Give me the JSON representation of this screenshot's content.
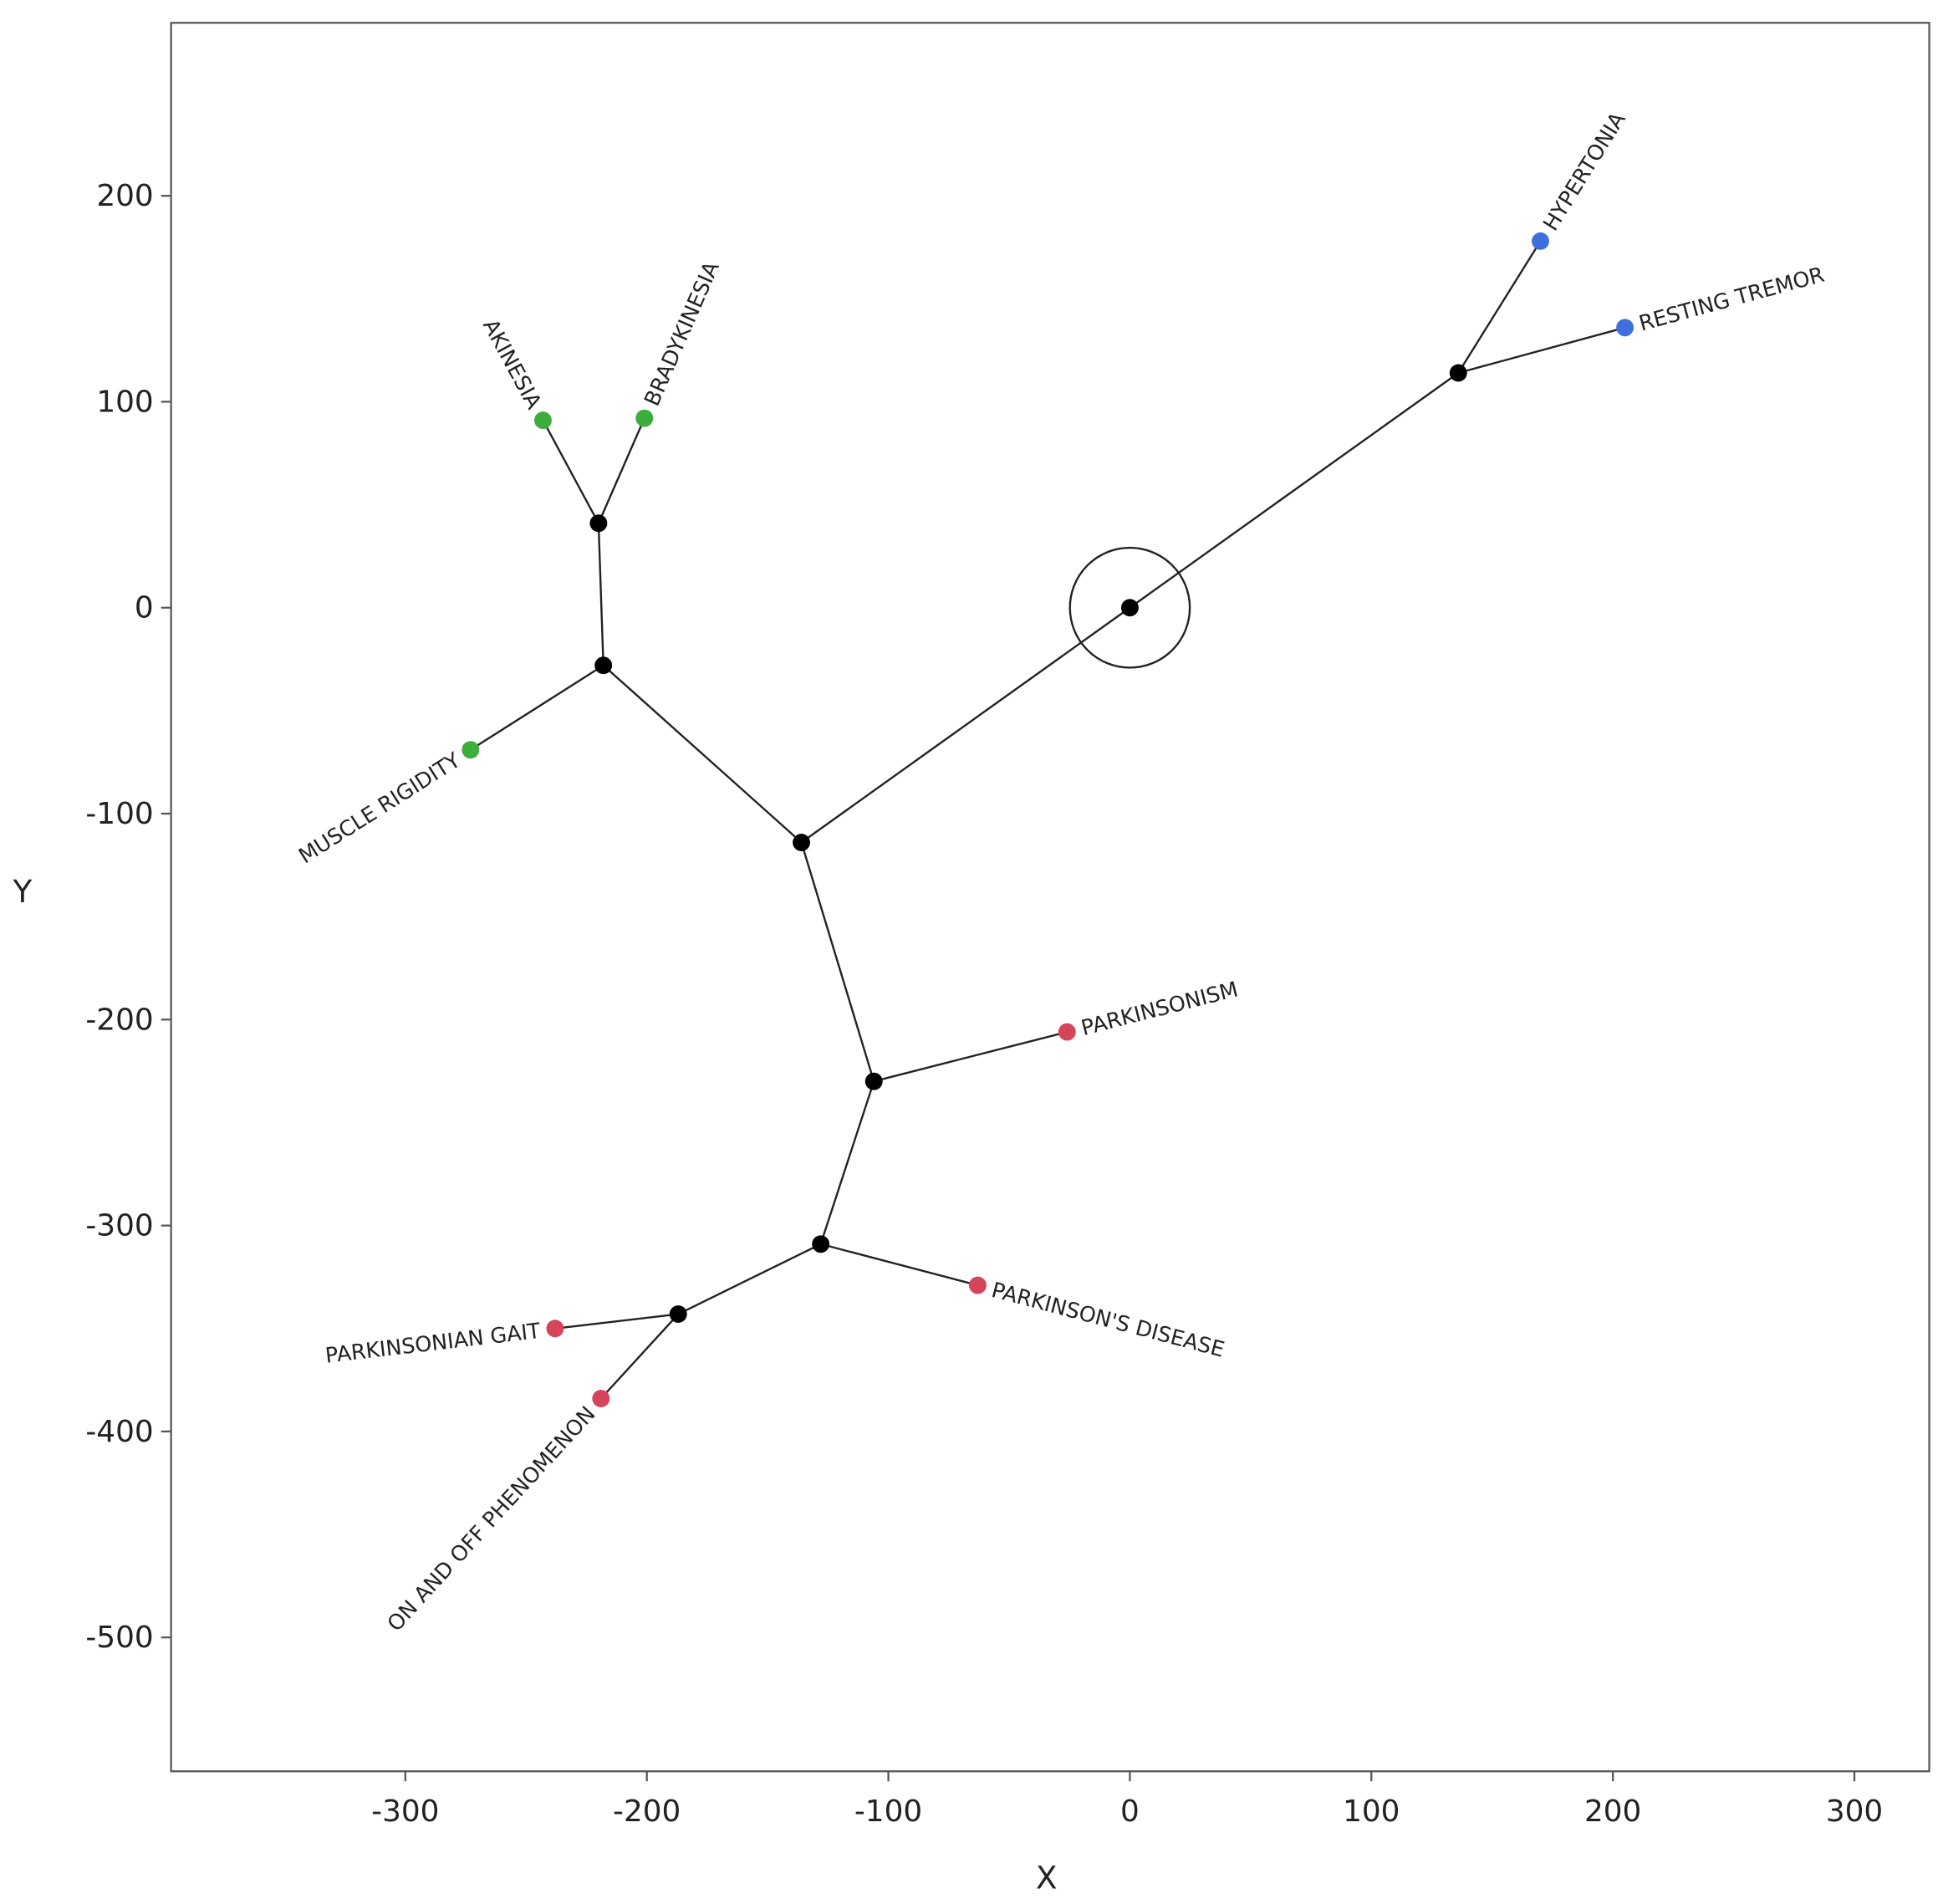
{
  "chart_data": {
    "type": "tree",
    "x_label": "X",
    "y_label": "Y",
    "xlim": [
      -397,
      331
    ],
    "ylim": [
      -565,
      284
    ],
    "xticks": [
      -300,
      -200,
      -100,
      0,
      100,
      200,
      300
    ],
    "yticks": [
      -500,
      -400,
      -300,
      -200,
      -100,
      0,
      100,
      200
    ],
    "nodes": [
      {
        "x": 0,
        "y": 0,
        "color": "#000000"
      },
      {
        "x": 136,
        "y": 114,
        "color": "#000000"
      },
      {
        "x": 170,
        "y": 178,
        "color": "#3f6fdc",
        "label": "HYPERTONIA"
      },
      {
        "x": 205,
        "y": 136,
        "color": "#3f6fdc",
        "label": "RESTING TREMOR"
      },
      {
        "x": -136,
        "y": -114,
        "color": "#000000"
      },
      {
        "x": -218,
        "y": -28,
        "color": "#000000"
      },
      {
        "x": -220,
        "y": 41,
        "color": "#000000"
      },
      {
        "x": -243,
        "y": 91,
        "color": "#3cae3c",
        "label": "AKINESIA"
      },
      {
        "x": -201,
        "y": 92,
        "color": "#3cae3c",
        "label": "BRADYKINESIA"
      },
      {
        "x": -273,
        "y": -69,
        "color": "#3cae3c",
        "label": "MUSCLE RIGIDITY"
      },
      {
        "x": -106,
        "y": -230,
        "color": "#000000"
      },
      {
        "x": -26,
        "y": -206,
        "color": "#d6455a",
        "label": "PARKINSONISM"
      },
      {
        "x": -128,
        "y": -309,
        "color": "#000000"
      },
      {
        "x": -63,
        "y": -329,
        "color": "#d6455a",
        "label": "PARKINSON'S DISEASE"
      },
      {
        "x": -187,
        "y": -343,
        "color": "#000000"
      },
      {
        "x": -238,
        "y": -350,
        "color": "#d6455a",
        "label": "PARKINSONIAN GAIT"
      },
      {
        "x": -219,
        "y": -384,
        "color": "#d6455a",
        "label": "ON AND OFF PHENOMENON"
      }
    ],
    "edges": [
      [
        0,
        1
      ],
      [
        1,
        2
      ],
      [
        1,
        3
      ],
      [
        0,
        4
      ],
      [
        4,
        5
      ],
      [
        5,
        6
      ],
      [
        6,
        7
      ],
      [
        6,
        8
      ],
      [
        5,
        9
      ],
      [
        4,
        10
      ],
      [
        10,
        11
      ],
      [
        10,
        12
      ],
      [
        12,
        13
      ],
      [
        12,
        14
      ],
      [
        14,
        15
      ],
      [
        14,
        16
      ]
    ],
    "root": 0
  }
}
